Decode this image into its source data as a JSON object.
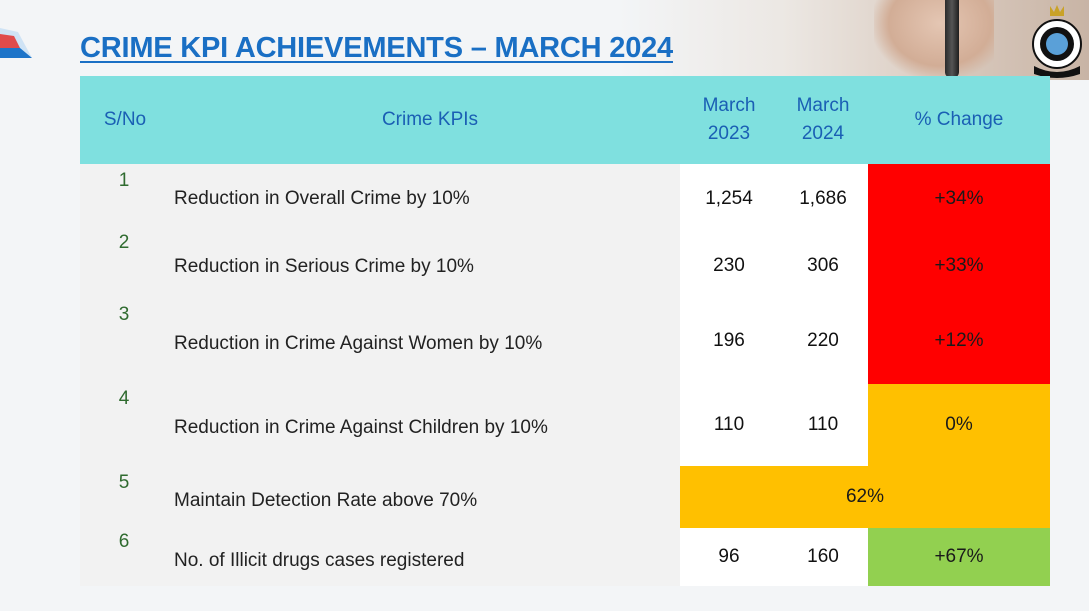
{
  "title": "CRIME KPI ACHIEVEMENTS – MARCH 2024",
  "colors": {
    "title": "#1a6fc4",
    "header_bg": "#7fe0df",
    "header_text": "#1a5fb4",
    "red": "#ff0000",
    "amber": "#ffc000",
    "green": "#92d050"
  },
  "header": {
    "sno": "S/No",
    "kpi": "Crime KPIs",
    "y2023_line1": "March",
    "y2023_line2": "2023",
    "y2024_line1": "March",
    "y2024_line2": "2024",
    "change": "% Change"
  },
  "rows": [
    {
      "sno": "1",
      "kpi": "Reduction in Overall Crime by 10%",
      "y2023": "1,254",
      "y2024": "1,686",
      "change": "+34%",
      "status": "red"
    },
    {
      "sno": "2",
      "kpi": "Reduction in Serious Crime by 10%",
      "y2023": "230",
      "y2024": "306",
      "change": "+33%",
      "status": "red"
    },
    {
      "sno": "3",
      "kpi": "Reduction in Crime Against Women by 10%",
      "y2023": "196",
      "y2024": "220",
      "change": "+12%",
      "status": "red"
    },
    {
      "sno": "4",
      "kpi": "Reduction in Crime Against Children by 10%",
      "y2023": "110",
      "y2024": "110",
      "change": "0%",
      "status": "amber"
    },
    {
      "sno": "5",
      "kpi": "Maintain Detection Rate above 70%",
      "value": "62%",
      "status": "amber"
    },
    {
      "sno": "6",
      "kpi": "No. of Illicit drugs cases registered",
      "y2023": "96",
      "y2024": "160",
      "change": "+67%",
      "status": "green"
    }
  ]
}
